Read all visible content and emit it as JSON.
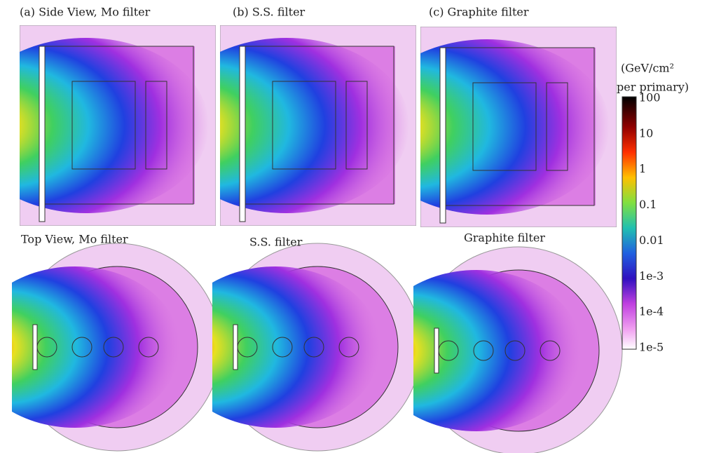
{
  "panels": {
    "top": [
      "(a) Side View, Mo filter",
      "(b) S.S. filter",
      "(c) Graphite filter"
    ],
    "bottom": [
      "Top View, Mo filter",
      "S.S. filter",
      "Graphite filter"
    ]
  },
  "colorbar": {
    "units": [
      "(GeV/cm²",
      "per primary)"
    ],
    "ticks": [
      "100",
      "10",
      "1",
      "0.1",
      "0.01",
      "1e-3",
      "1e-4",
      "1e-5"
    ]
  }
}
